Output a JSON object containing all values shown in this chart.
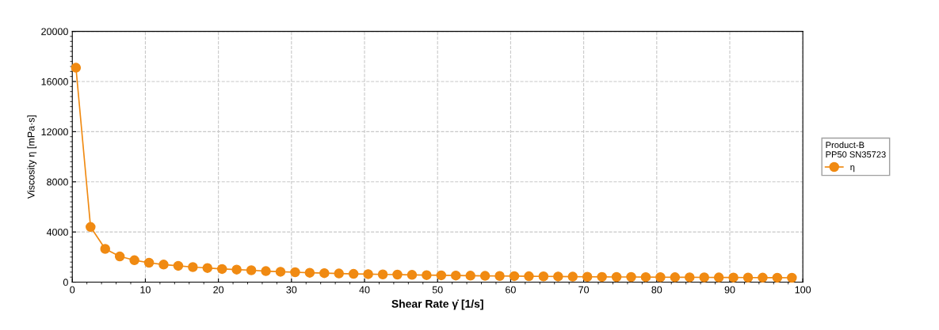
{
  "chart_data": {
    "type": "line",
    "xlabel": "Shear Rate γ̇ [1/s]",
    "ylabel": "Viscosity η [mPa·s]",
    "legend_title": "Product-B\nPP50 SN35723",
    "x": [
      0.5,
      2.5,
      4.5,
      6.5,
      8.5,
      10.5,
      12.5,
      14.5,
      16.5,
      18.5,
      20.5,
      22.5,
      24.5,
      26.5,
      28.5,
      30.5,
      32.5,
      34.5,
      36.5,
      38.5,
      40.5,
      42.5,
      44.5,
      46.5,
      48.5,
      50.5,
      52.5,
      54.5,
      56.5,
      58.5,
      60.5,
      62.5,
      64.5,
      66.5,
      68.5,
      70.5,
      72.5,
      74.5,
      76.5,
      78.5,
      80.5,
      82.5,
      84.5,
      86.5,
      88.5,
      90.5,
      92.5,
      94.5,
      96.5,
      98.5
    ],
    "series": [
      {
        "name": "η",
        "color": "#f08a12",
        "values": [
          17100,
          4400,
          2650,
          2050,
          1750,
          1550,
          1400,
          1300,
          1200,
          1130,
          1050,
          1000,
          950,
          880,
          830,
          790,
          750,
          720,
          690,
          660,
          640,
          620,
          600,
          580,
          560,
          545,
          530,
          515,
          500,
          490,
          480,
          470,
          460,
          450,
          440,
          430,
          420,
          415,
          410,
          400,
          395,
          390,
          385,
          380,
          375,
          370,
          365,
          360,
          355,
          350
        ]
      }
    ],
    "xlim": [
      0,
      100
    ],
    "xticks": [
      0,
      10,
      20,
      30,
      40,
      50,
      60,
      70,
      80,
      90,
      100
    ],
    "ylim": [
      0,
      20000
    ],
    "yticks": [
      0,
      4000,
      8000,
      12000,
      16000,
      20000
    ],
    "grid": true,
    "legend": "right",
    "marker": "circle",
    "line_style": "solid"
  }
}
